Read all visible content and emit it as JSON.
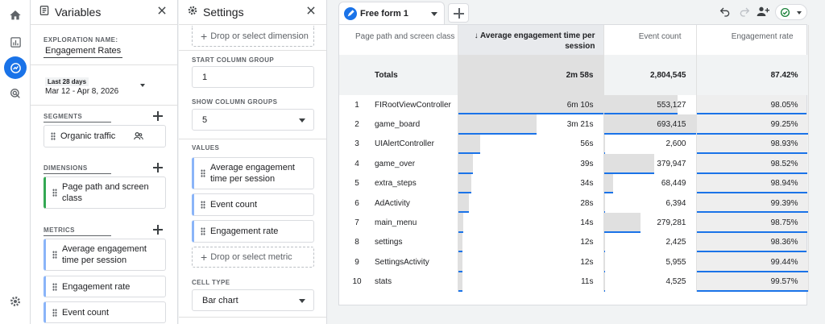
{
  "variables": {
    "title": "Variables",
    "exploration_name_label": "EXPLORATION NAME:",
    "exploration_name": "Engagement Rates",
    "date_range_label": "Last 28 days",
    "date_range": "Mar 12 - Apr 8, 2026",
    "segments_label": "SEGMENTS",
    "segments": [
      "Organic traffic"
    ],
    "dimensions_label": "DIMENSIONS",
    "dimensions": [
      "Page path and screen class"
    ],
    "metrics_label": "METRICS",
    "metrics": [
      "Average engagement time per session",
      "Engagement rate",
      "Event count"
    ]
  },
  "settings": {
    "title": "Settings",
    "drop_dimension": "Drop or select dimension",
    "start_column_group_label": "START COLUMN GROUP",
    "start_column_group": "1",
    "show_column_groups_label": "SHOW COLUMN GROUPS",
    "show_column_groups": "5",
    "values_label": "VALUES",
    "values": [
      "Average engagement time per session",
      "Event count",
      "Engagement rate"
    ],
    "drop_metric": "Drop or select metric",
    "cell_type_label": "CELL TYPE",
    "cell_type": "Bar chart"
  },
  "tab": {
    "label": "Free form 1"
  },
  "table": {
    "headers": [
      "Page path and screen class",
      "↓ Average engagement time per session",
      "Event count",
      "Engagement rate"
    ],
    "totals_label": "Totals",
    "totals": [
      "2m 58s",
      "2,804,545",
      "87.42%"
    ],
    "rows": [
      {
        "idx": "1",
        "name": "FIRootViewController",
        "time": "6m 10s",
        "events": "553,127",
        "rate": "98.05%",
        "time_frac": 1.0,
        "events_frac": 0.8,
        "rate_frac": 0.988
      },
      {
        "idx": "2",
        "name": "game_board",
        "time": "3m 21s",
        "events": "693,415",
        "rate": "99.25%",
        "time_frac": 0.54,
        "events_frac": 1.0,
        "rate_frac": 1.0
      },
      {
        "idx": "3",
        "name": "UIAlertController",
        "time": "56s",
        "events": "2,600",
        "rate": "98.93%",
        "time_frac": 0.15,
        "events_frac": 0.004,
        "rate_frac": 0.996
      },
      {
        "idx": "4",
        "name": "game_over",
        "time": "39s",
        "events": "379,947",
        "rate": "98.52%",
        "time_frac": 0.105,
        "events_frac": 0.548,
        "rate_frac": 0.993
      },
      {
        "idx": "5",
        "name": "extra_steps",
        "time": "34s",
        "events": "68,449",
        "rate": "98.94%",
        "time_frac": 0.092,
        "events_frac": 0.099,
        "rate_frac": 0.997
      },
      {
        "idx": "6",
        "name": "AdActivity",
        "time": "28s",
        "events": "6,394",
        "rate": "99.39%",
        "time_frac": 0.076,
        "events_frac": 0.009,
        "rate_frac": 1.0
      },
      {
        "idx": "7",
        "name": "main_menu",
        "time": "14s",
        "events": "279,281",
        "rate": "98.75%",
        "time_frac": 0.038,
        "events_frac": 0.403,
        "rate_frac": 0.995
      },
      {
        "idx": "8",
        "name": "settings",
        "time": "12s",
        "events": "2,425",
        "rate": "98.36%",
        "time_frac": 0.032,
        "events_frac": 0.003,
        "rate_frac": 0.991
      },
      {
        "idx": "9",
        "name": "SettingsActivity",
        "time": "12s",
        "events": "5,955",
        "rate": "99.44%",
        "time_frac": 0.032,
        "events_frac": 0.009,
        "rate_frac": 1.0
      },
      {
        "idx": "10",
        "name": "stats",
        "time": "11s",
        "events": "4,525",
        "rate": "99.57%",
        "time_frac": 0.03,
        "events_frac": 0.007,
        "rate_frac": 1.0
      }
    ]
  },
  "colors": {
    "accent": "#1a73e8",
    "bar": "#e0e0e0",
    "dimension": "#34a853",
    "metric": "#8ab4f8"
  }
}
